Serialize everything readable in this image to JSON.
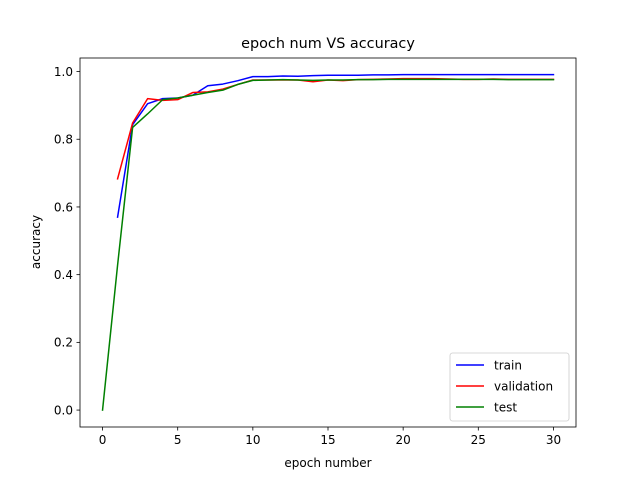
{
  "chart_data": {
    "type": "line",
    "title": "epoch num VS accuracy",
    "xlabel": "epoch number",
    "ylabel": "accuracy",
    "xlim": [
      -1.5,
      31.5
    ],
    "ylim": [
      -0.05,
      1.04
    ],
    "xticks": [
      0,
      5,
      10,
      15,
      20,
      25,
      30
    ],
    "yticks": [
      0.0,
      0.2,
      0.4,
      0.6,
      0.8,
      1.0
    ],
    "xtick_labels": [
      "0",
      "5",
      "10",
      "15",
      "20",
      "25",
      "30"
    ],
    "ytick_labels": [
      "0.0",
      "0.2",
      "0.4",
      "0.6",
      "0.8",
      "1.0"
    ],
    "grid": false,
    "legend_position": "lower-right",
    "series": [
      {
        "name": "train",
        "color": "#0000ff",
        "x": [
          1,
          2,
          3,
          4,
          5,
          6,
          7,
          8,
          9,
          10,
          11,
          12,
          13,
          14,
          15,
          16,
          17,
          18,
          19,
          20,
          21,
          22,
          23,
          24,
          25,
          26,
          27,
          28,
          29,
          30
        ],
        "y": [
          0.57,
          0.843,
          0.905,
          0.92,
          0.922,
          0.93,
          0.958,
          0.963,
          0.973,
          0.985,
          0.985,
          0.987,
          0.986,
          0.988,
          0.989,
          0.989,
          0.989,
          0.99,
          0.99,
          0.991,
          0.991,
          0.991,
          0.991,
          0.991,
          0.991,
          0.991,
          0.991,
          0.991,
          0.991,
          0.991
        ]
      },
      {
        "name": "validation",
        "color": "#ff0000",
        "x": [
          1,
          2,
          3,
          4,
          5,
          6,
          7,
          8,
          9,
          10,
          11,
          12,
          13,
          14,
          15,
          16,
          17,
          18,
          19,
          20,
          21,
          22,
          23,
          24,
          25,
          26,
          27,
          28,
          29,
          30
        ],
        "y": [
          0.683,
          0.848,
          0.92,
          0.915,
          0.917,
          0.938,
          0.94,
          0.948,
          0.962,
          0.975,
          0.975,
          0.975,
          0.975,
          0.97,
          0.975,
          0.973,
          0.976,
          0.977,
          0.978,
          0.979,
          0.979,
          0.979,
          0.978,
          0.977,
          0.977,
          0.978,
          0.977,
          0.977,
          0.977,
          0.977
        ]
      },
      {
        "name": "test",
        "color": "#008000",
        "x": [
          0,
          1,
          2,
          3,
          4,
          5,
          6,
          7,
          8,
          9,
          10,
          11,
          12,
          13,
          14,
          15,
          16,
          17,
          18,
          19,
          20,
          21,
          22,
          23,
          24,
          25,
          26,
          27,
          28,
          29,
          30
        ],
        "y": [
          0.0,
          0.428,
          0.835,
          0.875,
          0.917,
          0.922,
          0.93,
          0.938,
          0.945,
          0.962,
          0.974,
          0.975,
          0.976,
          0.975,
          0.974,
          0.975,
          0.975,
          0.976,
          0.976,
          0.977,
          0.977,
          0.977,
          0.977,
          0.977,
          0.977,
          0.977,
          0.977,
          0.976,
          0.976,
          0.976,
          0.976
        ]
      }
    ]
  }
}
